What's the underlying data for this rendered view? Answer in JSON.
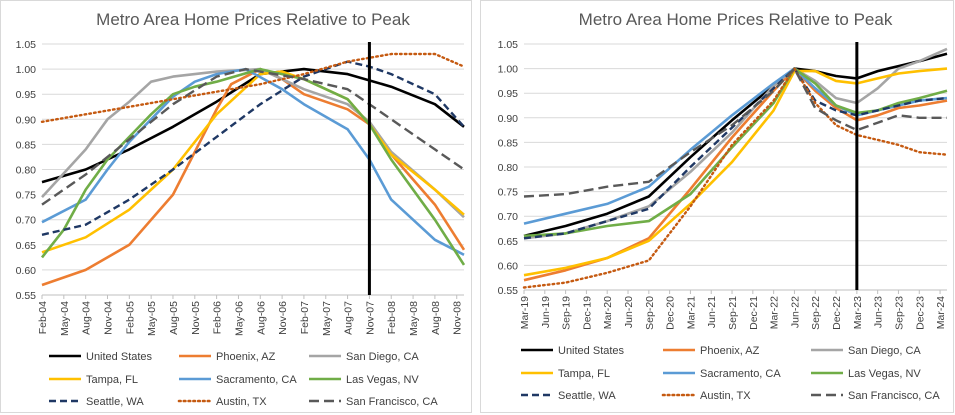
{
  "colors": {
    "United States": "#000000",
    "Phoenix, AZ": "#ED7D31",
    "San Diego, CA": "#A5A5A5",
    "Tampa, FL": "#FFC000",
    "Sacramento, CA": "#5B9BD5",
    "Las Vegas, NV": "#70AD47",
    "Seattle, WA": "#1F3864",
    "Austin, TX": "#C55A11",
    "San Francisco, CA": "#595959"
  },
  "chart_data": [
    {
      "type": "line",
      "title": "Metro Area Home Prices Relative to Peak",
      "xlabel": "",
      "ylabel": "",
      "ylim": [
        0.55,
        1.05
      ],
      "yticks": [
        "0.55",
        "0.60",
        "0.65",
        "0.70",
        "0.75",
        "0.80",
        "0.85",
        "0.90",
        "0.95",
        "1.00",
        "1.05"
      ],
      "x_tick_labels": [
        "Feb-04",
        "May-04",
        "Aug-04",
        "Nov-04",
        "Feb-05",
        "May-05",
        "Aug-05",
        "Nov-05",
        "Feb-06",
        "May-06",
        "Aug-06",
        "Nov-06",
        "Feb-07",
        "May-07",
        "Aug-07",
        "Nov-07",
        "Feb-08",
        "May-08",
        "Aug-08",
        "Nov-08"
      ],
      "x_range": [
        "Feb-04",
        "Dec-08"
      ],
      "marker_line_x": "Nov-07",
      "grid": "horizontal",
      "legend_placement": "bottom",
      "series": [
        {
          "name": "United States",
          "style": "solid",
          "x": [
            "Feb-04",
            "Aug-04",
            "Feb-05",
            "Aug-05",
            "Feb-06",
            "Aug-06",
            "Feb-07",
            "Aug-07",
            "Feb-08",
            "Aug-08",
            "Dec-08"
          ],
          "values": [
            0.775,
            0.8,
            0.84,
            0.885,
            0.935,
            0.99,
            1.0,
            0.99,
            0.965,
            0.93,
            0.885
          ]
        },
        {
          "name": "Phoenix, AZ",
          "style": "solid",
          "x": [
            "Feb-04",
            "Aug-04",
            "Feb-05",
            "Aug-05",
            "Feb-06",
            "Apr-06",
            "Aug-06",
            "Nov-06",
            "Feb-07",
            "Aug-07",
            "Nov-07",
            "Feb-08",
            "Aug-08",
            "Dec-08"
          ],
          "values": [
            0.57,
            0.6,
            0.65,
            0.75,
            0.92,
            0.97,
            1.0,
            0.98,
            0.95,
            0.92,
            0.89,
            0.83,
            0.73,
            0.64
          ]
        },
        {
          "name": "San Diego, CA",
          "style": "solid",
          "x": [
            "Feb-04",
            "Aug-04",
            "Nov-04",
            "Feb-05",
            "May-05",
            "Aug-05",
            "Nov-05",
            "Feb-06",
            "Aug-06",
            "Feb-07",
            "Aug-07",
            "Nov-07",
            "Feb-08",
            "Aug-08",
            "Dec-08"
          ],
          "values": [
            0.745,
            0.84,
            0.9,
            0.935,
            0.975,
            0.985,
            0.99,
            0.995,
            1.0,
            0.96,
            0.93,
            0.895,
            0.835,
            0.76,
            0.705
          ]
        },
        {
          "name": "Tampa, FL",
          "style": "solid",
          "x": [
            "Feb-04",
            "Aug-04",
            "Feb-05",
            "Aug-05",
            "Feb-06",
            "Aug-06",
            "Nov-06",
            "Feb-07",
            "Aug-07",
            "Nov-07",
            "Feb-08",
            "Aug-08",
            "Dec-08"
          ],
          "values": [
            0.635,
            0.665,
            0.72,
            0.8,
            0.91,
            0.99,
            0.995,
            0.98,
            0.94,
            0.89,
            0.83,
            0.76,
            0.71
          ]
        },
        {
          "name": "Sacramento, CA",
          "style": "solid",
          "x": [
            "Feb-04",
            "Aug-04",
            "Nov-04",
            "Feb-05",
            "May-05",
            "Aug-05",
            "Nov-05",
            "Feb-06",
            "Jun-06",
            "Nov-06",
            "Feb-07",
            "Aug-07",
            "Nov-07",
            "Feb-08",
            "Aug-08",
            "Dec-08"
          ],
          "values": [
            0.695,
            0.74,
            0.8,
            0.855,
            0.9,
            0.945,
            0.975,
            0.99,
            1.0,
            0.96,
            0.93,
            0.88,
            0.82,
            0.74,
            0.66,
            0.63
          ]
        },
        {
          "name": "Las Vegas, NV",
          "style": "solid",
          "x": [
            "Feb-04",
            "May-04",
            "Aug-04",
            "Nov-04",
            "Feb-05",
            "May-05",
            "Aug-05",
            "Nov-05",
            "Feb-06",
            "Aug-06",
            "Feb-07",
            "Aug-07",
            "Nov-07",
            "Feb-08",
            "Aug-08",
            "Dec-08"
          ],
          "values": [
            0.625,
            0.68,
            0.76,
            0.82,
            0.865,
            0.91,
            0.95,
            0.965,
            0.975,
            1.0,
            0.98,
            0.94,
            0.89,
            0.82,
            0.7,
            0.61
          ]
        },
        {
          "name": "Seattle, WA",
          "style": "dash",
          "x": [
            "Feb-04",
            "Aug-04",
            "Feb-05",
            "Aug-05",
            "Feb-06",
            "Aug-06",
            "Feb-07",
            "Aug-07",
            "Nov-07",
            "Feb-08",
            "Aug-08",
            "Dec-08"
          ],
          "values": [
            0.67,
            0.69,
            0.74,
            0.8,
            0.865,
            0.93,
            0.985,
            1.015,
            1.005,
            0.99,
            0.95,
            0.885
          ]
        },
        {
          "name": "Austin, TX",
          "style": "dot",
          "x": [
            "Feb-04",
            "Aug-04",
            "Feb-05",
            "Aug-05",
            "Feb-06",
            "Aug-06",
            "Feb-07",
            "Aug-07",
            "Feb-08",
            "Aug-08",
            "Dec-08"
          ],
          "values": [
            0.895,
            0.91,
            0.925,
            0.94,
            0.955,
            0.97,
            0.99,
            1.015,
            1.03,
            1.03,
            1.005
          ]
        },
        {
          "name": "San Francisco, CA",
          "style": "longdash",
          "x": [
            "Feb-04",
            "Aug-04",
            "Feb-05",
            "Aug-05",
            "Feb-06",
            "Jun-06",
            "Feb-07",
            "Aug-07",
            "Nov-07",
            "Feb-08",
            "Aug-08",
            "Dec-08"
          ],
          "values": [
            0.73,
            0.79,
            0.86,
            0.93,
            0.985,
            1.0,
            0.98,
            0.96,
            0.93,
            0.9,
            0.84,
            0.8
          ]
        }
      ]
    },
    {
      "type": "line",
      "title": "Metro Area Home Prices Relative to Peak",
      "xlabel": "",
      "ylabel": "",
      "ylim": [
        0.55,
        1.05
      ],
      "yticks": [
        "0.55",
        "0.60",
        "0.65",
        "0.70",
        "0.75",
        "0.80",
        "0.85",
        "0.90",
        "0.95",
        "1.00",
        "1.05"
      ],
      "x_tick_labels": [
        "Mar-19",
        "Jun-19",
        "Sep-19",
        "Dec-19",
        "Mar-20",
        "Jun-20",
        "Sep-20",
        "Dec-20",
        "Mar-21",
        "Jun-21",
        "Sep-21",
        "Dec-21",
        "Mar-22",
        "Jun-22",
        "Sep-22",
        "Dec-22",
        "Mar-23",
        "Jun-23",
        "Sep-23",
        "Dec-23",
        "Mar-24"
      ],
      "x_range": [
        "Mar-19",
        "Apr-24"
      ],
      "marker_line_x": "Mar-23",
      "grid": "horizontal",
      "legend_placement": "bottom",
      "series": [
        {
          "name": "United States",
          "style": "solid",
          "x": [
            "Mar-19",
            "Sep-19",
            "Mar-20",
            "Sep-20",
            "Mar-21",
            "Sep-21",
            "Mar-22",
            "Jun-22",
            "Sep-22",
            "Dec-22",
            "Mar-23",
            "Jun-23",
            "Sep-23",
            "Dec-23",
            "Apr-24"
          ],
          "values": [
            0.66,
            0.68,
            0.705,
            0.74,
            0.82,
            0.895,
            0.965,
            1.0,
            0.995,
            0.985,
            0.98,
            0.995,
            1.005,
            1.015,
            1.03
          ]
        },
        {
          "name": "Phoenix, AZ",
          "style": "solid",
          "x": [
            "Mar-19",
            "Sep-19",
            "Mar-20",
            "Sep-20",
            "Mar-21",
            "Sep-21",
            "Mar-22",
            "Jun-22",
            "Sep-22",
            "Dec-22",
            "Mar-23",
            "Jun-23",
            "Sep-23",
            "Dec-23",
            "Apr-24"
          ],
          "values": [
            0.57,
            0.59,
            0.615,
            0.655,
            0.755,
            0.86,
            0.955,
            1.0,
            0.955,
            0.92,
            0.895,
            0.905,
            0.92,
            0.925,
            0.935
          ]
        },
        {
          "name": "San Diego, CA",
          "style": "solid",
          "x": [
            "Mar-19",
            "Sep-19",
            "Mar-20",
            "Sep-20",
            "Mar-21",
            "Sep-21",
            "Mar-22",
            "Jun-22",
            "Sep-22",
            "Dec-22",
            "Mar-23",
            "Jun-23",
            "Sep-23",
            "Dec-23",
            "Apr-24"
          ],
          "values": [
            0.655,
            0.665,
            0.69,
            0.72,
            0.79,
            0.87,
            0.965,
            1.0,
            0.975,
            0.94,
            0.93,
            0.96,
            1.0,
            1.015,
            1.04
          ]
        },
        {
          "name": "Tampa, FL",
          "style": "solid",
          "x": [
            "Mar-19",
            "Sep-19",
            "Mar-20",
            "Sep-20",
            "Mar-21",
            "Sep-21",
            "Mar-22",
            "Jun-22",
            "Sep-22",
            "Dec-22",
            "Mar-23",
            "Jun-23",
            "Sep-23",
            "Dec-23",
            "Apr-24"
          ],
          "values": [
            0.58,
            0.595,
            0.615,
            0.65,
            0.725,
            0.81,
            0.915,
            0.995,
            0.995,
            0.975,
            0.97,
            0.98,
            0.99,
            0.995,
            1.0
          ]
        },
        {
          "name": "Sacramento, CA",
          "style": "solid",
          "x": [
            "Mar-19",
            "Sep-19",
            "Mar-20",
            "Sep-20",
            "Mar-21",
            "Sep-21",
            "Mar-22",
            "Jun-22",
            "Sep-22",
            "Dec-22",
            "Mar-23",
            "Jun-23",
            "Sep-23",
            "Dec-23",
            "Apr-24"
          ],
          "values": [
            0.685,
            0.705,
            0.725,
            0.76,
            0.835,
            0.905,
            0.97,
            1.0,
            0.96,
            0.925,
            0.905,
            0.915,
            0.925,
            0.935,
            0.94
          ]
        },
        {
          "name": "Las Vegas, NV",
          "style": "solid",
          "x": [
            "Mar-19",
            "Sep-19",
            "Mar-20",
            "Sep-20",
            "Mar-21",
            "Sep-21",
            "Mar-22",
            "Jun-22",
            "Sep-22",
            "Dec-22",
            "Mar-23",
            "Jun-23",
            "Sep-23",
            "Dec-23",
            "Apr-24"
          ],
          "values": [
            0.66,
            0.665,
            0.68,
            0.69,
            0.745,
            0.84,
            0.93,
            1.0,
            0.97,
            0.925,
            0.91,
            0.915,
            0.93,
            0.94,
            0.955
          ]
        },
        {
          "name": "Seattle, WA",
          "style": "dash",
          "x": [
            "Mar-19",
            "Sep-19",
            "Mar-20",
            "Sep-20",
            "Mar-21",
            "Sep-21",
            "Mar-22",
            "Jun-22",
            "Sep-22",
            "Dec-22",
            "Mar-23",
            "Jun-23",
            "Sep-23",
            "Dec-23",
            "Apr-24"
          ],
          "values": [
            0.655,
            0.665,
            0.69,
            0.715,
            0.8,
            0.88,
            0.96,
            1.0,
            0.935,
            0.915,
            0.905,
            0.915,
            0.925,
            0.935,
            0.94
          ]
        },
        {
          "name": "Austin, TX",
          "style": "dot",
          "x": [
            "Mar-19",
            "Sep-19",
            "Mar-20",
            "Sep-20",
            "Mar-21",
            "Sep-21",
            "Mar-22",
            "Jun-22",
            "Sep-22",
            "Dec-22",
            "Mar-23",
            "Jun-23",
            "Sep-23",
            "Dec-23",
            "Apr-24"
          ],
          "values": [
            0.555,
            0.565,
            0.585,
            0.61,
            0.72,
            0.845,
            0.935,
            1.0,
            0.93,
            0.885,
            0.865,
            0.855,
            0.845,
            0.83,
            0.825
          ]
        },
        {
          "name": "San Francisco, CA",
          "style": "longdash",
          "x": [
            "Mar-19",
            "Sep-19",
            "Mar-20",
            "Sep-20",
            "Mar-21",
            "Sep-21",
            "Mar-22",
            "Jun-22",
            "Sep-22",
            "Dec-22",
            "Mar-23",
            "Jun-23",
            "Sep-23",
            "Dec-23",
            "Apr-24"
          ],
          "values": [
            0.74,
            0.745,
            0.76,
            0.77,
            0.83,
            0.885,
            0.955,
            1.0,
            0.92,
            0.895,
            0.875,
            0.89,
            0.905,
            0.9,
            0.9
          ]
        }
      ]
    }
  ]
}
